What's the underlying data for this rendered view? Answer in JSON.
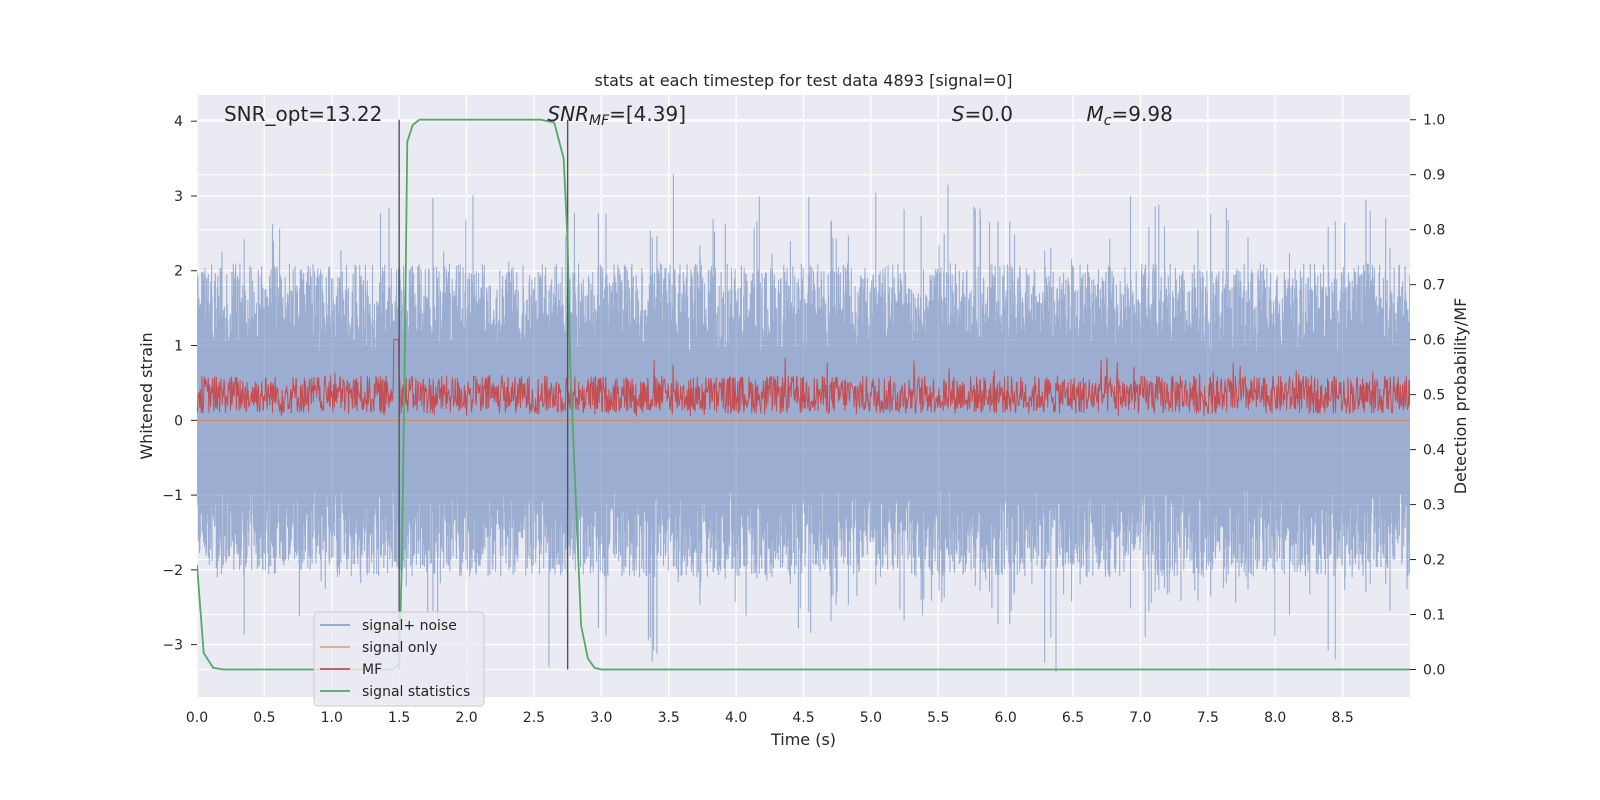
{
  "chart_data": {
    "type": "line",
    "title": "stats at each timestep for test data 4893 [signal=0]",
    "xlabel": "Time (s)",
    "ylabel": "Whitened strain",
    "y2label": "Detection probability/MF",
    "xlim": [
      0.0,
      9.0
    ],
    "ylim": [
      -3.7,
      4.35
    ],
    "y2lim": [
      -0.05,
      1.045
    ],
    "xticks": [
      "0.0",
      "0.5",
      "1.0",
      "1.5",
      "2.0",
      "2.5",
      "3.0",
      "3.5",
      "4.0",
      "4.5",
      "5.0",
      "5.5",
      "6.0",
      "6.5",
      "7.0",
      "7.5",
      "8.0",
      "8.5"
    ],
    "yticks": [
      "−3",
      "−2",
      "−1",
      "0",
      "1",
      "2",
      "3",
      "4"
    ],
    "y2ticks": [
      "0.0",
      "0.1",
      "0.2",
      "0.3",
      "0.4",
      "0.5",
      "0.6",
      "0.7",
      "0.8",
      "0.9",
      "1.0"
    ],
    "grid": true,
    "background": "#eaeaf2",
    "legend_position": "lower-left",
    "annotations": [
      {
        "text": "SNR_opt=13.22",
        "x": 0.2
      },
      {
        "text": "SNR_MF=[4.39]",
        "x": 2.6
      },
      {
        "text": "S=0.0",
        "x": 5.6
      },
      {
        "text": "M_c=9.98",
        "x": 6.6
      }
    ],
    "vertical_lines": [
      1.5,
      2.75
    ],
    "series": [
      {
        "name": "signal+ noise",
        "color": "#4c72b0",
        "axis": "left",
        "description": "dense whitened strain noise",
        "envelope_upper": [
          1.2,
          2.4,
          2.8,
          2.7,
          3.35,
          2.6,
          2.5,
          2.8,
          3.2,
          3.9,
          3.0,
          2.6,
          3.15,
          2.7,
          2.4,
          2.5,
          2.9,
          3.0,
          2.8,
          2.6,
          2.7,
          3.3,
          2.5,
          2.7,
          2.6,
          3.0,
          2.5,
          3.2,
          2.7,
          2.6,
          3.3,
          2.7,
          3.1,
          2.6,
          3.5,
          3.0,
          2.8,
          2.9,
          2.4,
          2.5,
          2.6,
          2.8,
          3.0,
          3.0,
          2.7,
          2.8,
          2.9,
          2.6,
          2.7,
          2.6,
          2.5,
          3.0,
          2.9,
          3.1,
          2.4
        ],
        "envelope_lower": [
          -1.8,
          -2.0,
          -3.3,
          -1.9,
          -2.9,
          -2.4,
          -2.1,
          -2.2,
          -1.9,
          -2.5,
          -2.9,
          -2.2,
          -2.0,
          -2.1,
          -2.2,
          -3.4,
          -2.0,
          -2.1,
          -2.9,
          -2.6,
          -3.3,
          -2.2,
          -2.5,
          -2.3,
          -2.8,
          -2.2,
          -2.4,
          -2.9,
          -2.7,
          -2.6,
          -2.5,
          -2.9,
          -2.8,
          -2.5,
          -2.0,
          -2.3,
          -2.8,
          -2.4,
          -3.4,
          -2.6,
          -2.3,
          -2.4,
          -2.9,
          -2.6,
          -2.5,
          -2.5,
          -2.4,
          -2.6,
          -3.0,
          -2.8,
          -2.4,
          -3.2,
          -2.5,
          -2.5,
          -2.6
        ]
      },
      {
        "name": "signal only",
        "color": "#dd8452",
        "axis": "left",
        "values_constant": 0.0
      },
      {
        "name": "MF",
        "color": "#c44e52",
        "axis": "right",
        "description": "matched filter output fluctuating around 0.5",
        "band": [
          0.46,
          0.57
        ]
      },
      {
        "name": "signal statistics",
        "color": "#55a868",
        "axis": "right",
        "x": [
          0.0,
          0.05,
          0.12,
          0.2,
          0.3,
          1.45,
          1.5,
          1.52,
          1.54,
          1.56,
          1.6,
          1.65,
          2.3,
          2.55,
          2.65,
          2.72,
          2.75,
          2.77,
          2.85,
          2.9,
          2.95,
          3.0,
          9.0
        ],
        "y": [
          0.19,
          0.03,
          0.003,
          0.0,
          0.0,
          0.0,
          0.01,
          0.2,
          0.55,
          0.96,
          0.99,
          1.0,
          1.0,
          1.0,
          0.995,
          0.93,
          0.78,
          0.55,
          0.08,
          0.02,
          0.003,
          0.0,
          0.0
        ]
      }
    ]
  }
}
